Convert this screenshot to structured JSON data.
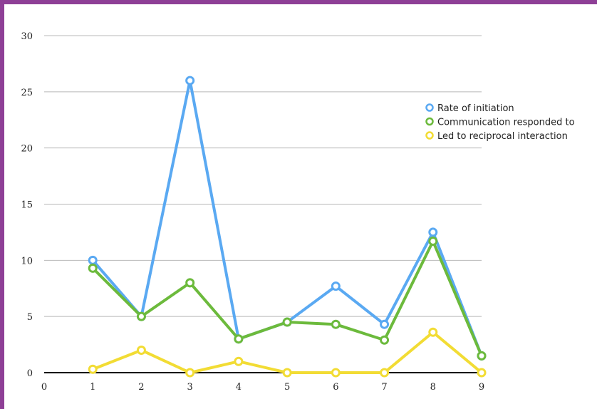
{
  "chart_data": {
    "type": "line",
    "title": "",
    "xlabel": "",
    "ylabel": "",
    "x": [
      1,
      2,
      3,
      4,
      5,
      6,
      7,
      8,
      9
    ],
    "x_ticks": [
      "0",
      "1",
      "2",
      "3",
      "4",
      "5",
      "6",
      "7",
      "8",
      "9"
    ],
    "y_ticks": [
      "0",
      "5",
      "10",
      "15",
      "20",
      "25",
      "30"
    ],
    "xlim": [
      0,
      9
    ],
    "ylim": [
      0,
      30
    ],
    "grid": true,
    "legend_position": "right",
    "series": [
      {
        "name": "Rate of initiation",
        "color": "#5aa9f2",
        "values": [
          10,
          5,
          26,
          3,
          4.5,
          7.7,
          4.3,
          12.5,
          1.5
        ]
      },
      {
        "name": "Communication responded to",
        "color": "#6cba3c",
        "values": [
          9.3,
          5,
          8,
          3,
          4.5,
          4.3,
          2.9,
          11.7,
          1.5
        ]
      },
      {
        "name": "Led to reciprocal interaction",
        "color": "#f2dc34",
        "values": [
          0.3,
          2,
          0,
          1,
          0,
          0,
          0,
          3.6,
          0
        ]
      }
    ]
  }
}
